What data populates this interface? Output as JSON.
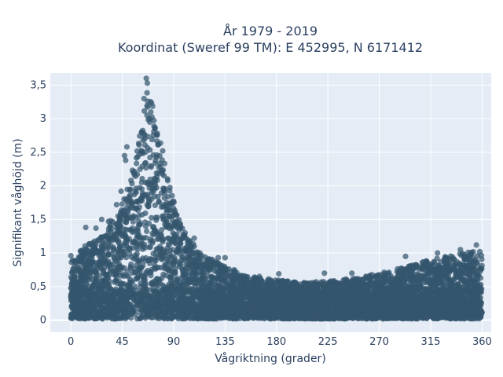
{
  "chart_data": {
    "type": "scatter",
    "title_lines": [
      "År 1979 - 2019",
      "Koordinat (Sweref 99 TM): E 452995, N 6171412"
    ],
    "xlabel": "Vågriktning (grader)",
    "ylabel": "Signifikant våghöjd (m)",
    "xlim": [
      -18,
      368
    ],
    "ylim": [
      -0.18,
      3.68
    ],
    "x_ticks": [
      0,
      45,
      90,
      135,
      180,
      225,
      270,
      315,
      360
    ],
    "x_tick_labels": [
      "0",
      "45",
      "90",
      "135",
      "180",
      "225",
      "270",
      "315",
      "360"
    ],
    "y_ticks": [
      0,
      0.5,
      1,
      1.5,
      2,
      2.5,
      3,
      3.5
    ],
    "y_tick_labels": [
      "0",
      "0,5",
      "1",
      "1,5",
      "2",
      "2,5",
      "3",
      "3,5"
    ],
    "grid": true,
    "marker_color": "#34566e",
    "plot_bg": "#e5ecf6",
    "envelope": {
      "x": [
        0,
        10,
        20,
        30,
        40,
        50,
        55,
        60,
        65,
        68,
        72,
        75,
        80,
        85,
        90,
        95,
        100,
        110,
        120,
        135,
        150,
        165,
        180,
        200,
        225,
        250,
        270,
        290,
        310,
        330,
        350,
        360
      ],
      "y_max": [
        0.9,
        1.1,
        1.2,
        1.35,
        1.6,
        2.0,
        2.4,
        2.75,
        3.2,
        3.6,
        3.2,
        2.9,
        2.6,
        2.2,
        1.8,
        1.5,
        1.3,
        1.1,
        0.95,
        0.85,
        0.7,
        0.65,
        0.62,
        0.58,
        0.6,
        0.65,
        0.72,
        0.8,
        0.9,
        0.98,
        1.05,
        1.0
      ]
    },
    "outliers": [
      {
        "x": 66,
        "y": 3.6
      },
      {
        "x": 67,
        "y": 3.53
      },
      {
        "x": 64,
        "y": 3.3
      },
      {
        "x": 70,
        "y": 3.1
      },
      {
        "x": 49,
        "y": 2.58
      },
      {
        "x": 47,
        "y": 2.45
      },
      {
        "x": 48,
        "y": 2.38
      },
      {
        "x": 44,
        "y": 1.92
      },
      {
        "x": 40,
        "y": 1.72
      },
      {
        "x": 33,
        "y": 1.47
      },
      {
        "x": 27,
        "y": 1.5
      },
      {
        "x": 35,
        "y": 1.48
      },
      {
        "x": 13,
        "y": 1.38
      },
      {
        "x": 22,
        "y": 1.37
      },
      {
        "x": 91,
        "y": 1.4
      },
      {
        "x": 100,
        "y": 1.3
      },
      {
        "x": 108,
        "y": 1.22
      },
      {
        "x": 113,
        "y": 1.0
      },
      {
        "x": 129,
        "y": 0.93
      },
      {
        "x": 135,
        "y": 0.93
      },
      {
        "x": 165,
        "y": 0.65
      },
      {
        "x": 182,
        "y": 0.69
      },
      {
        "x": 222,
        "y": 0.7
      },
      {
        "x": 246,
        "y": 0.7
      },
      {
        "x": 293,
        "y": 0.95
      },
      {
        "x": 321,
        "y": 1.0
      },
      {
        "x": 341,
        "y": 1.05
      },
      {
        "x": 355,
        "y": 1.12
      },
      {
        "x": 358,
        "y": 1.02
      },
      {
        "x": 0,
        "y": 0.96
      }
    ]
  }
}
